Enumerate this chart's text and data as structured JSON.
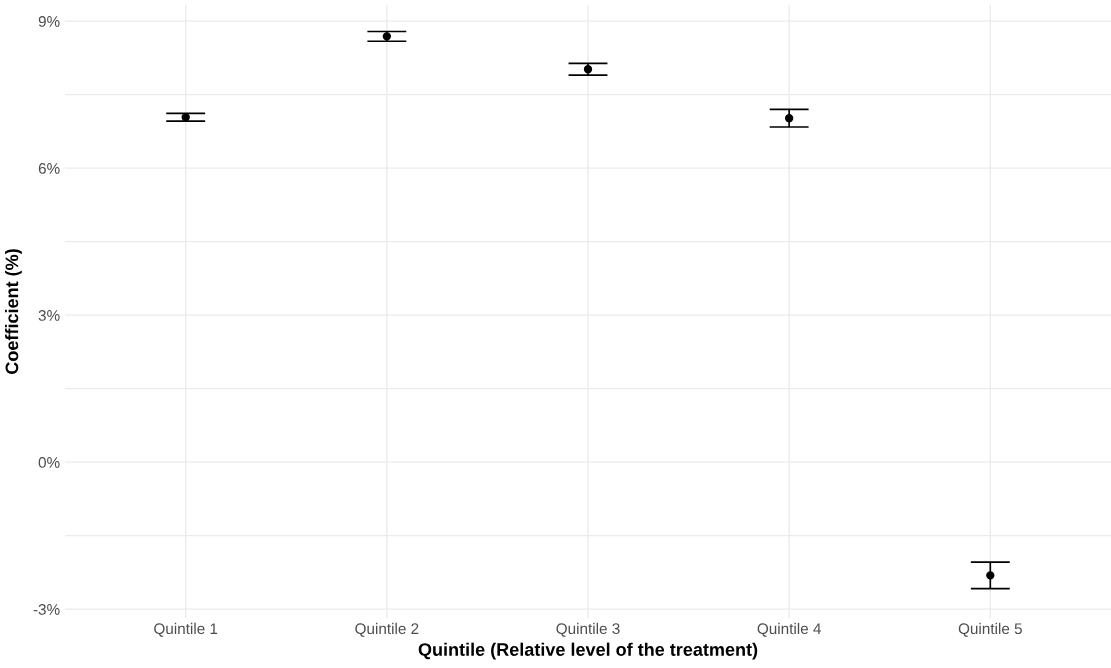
{
  "chart_data": {
    "type": "scatter",
    "xlabel": "Quintile (Relative level of the treatment)",
    "ylabel": "Coefficient (%)",
    "categories": [
      "Quintile 1",
      "Quintile 2",
      "Quintile 3",
      "Quintile 4",
      "Quintile 5"
    ],
    "values": [
      7.04,
      8.69,
      8.02,
      7.02,
      -2.31
    ],
    "errors": [
      0.08,
      0.1,
      0.12,
      0.18,
      0.27
    ],
    "color": "#000000",
    "marker": "circle",
    "grid": true,
    "ylim": [
      -3.18,
      9.33
    ],
    "yticks": [
      {
        "value": -3,
        "label": "-3%"
      },
      {
        "value": -1.5,
        "label": null
      },
      {
        "value": 0,
        "label": "0%"
      },
      {
        "value": 1.5,
        "label": null
      },
      {
        "value": 3,
        "label": "3%"
      },
      {
        "value": 4.5,
        "label": null
      },
      {
        "value": 6,
        "label": "6%"
      },
      {
        "value": 7.5,
        "label": null
      },
      {
        "value": 9,
        "label": "9%"
      }
    ]
  }
}
